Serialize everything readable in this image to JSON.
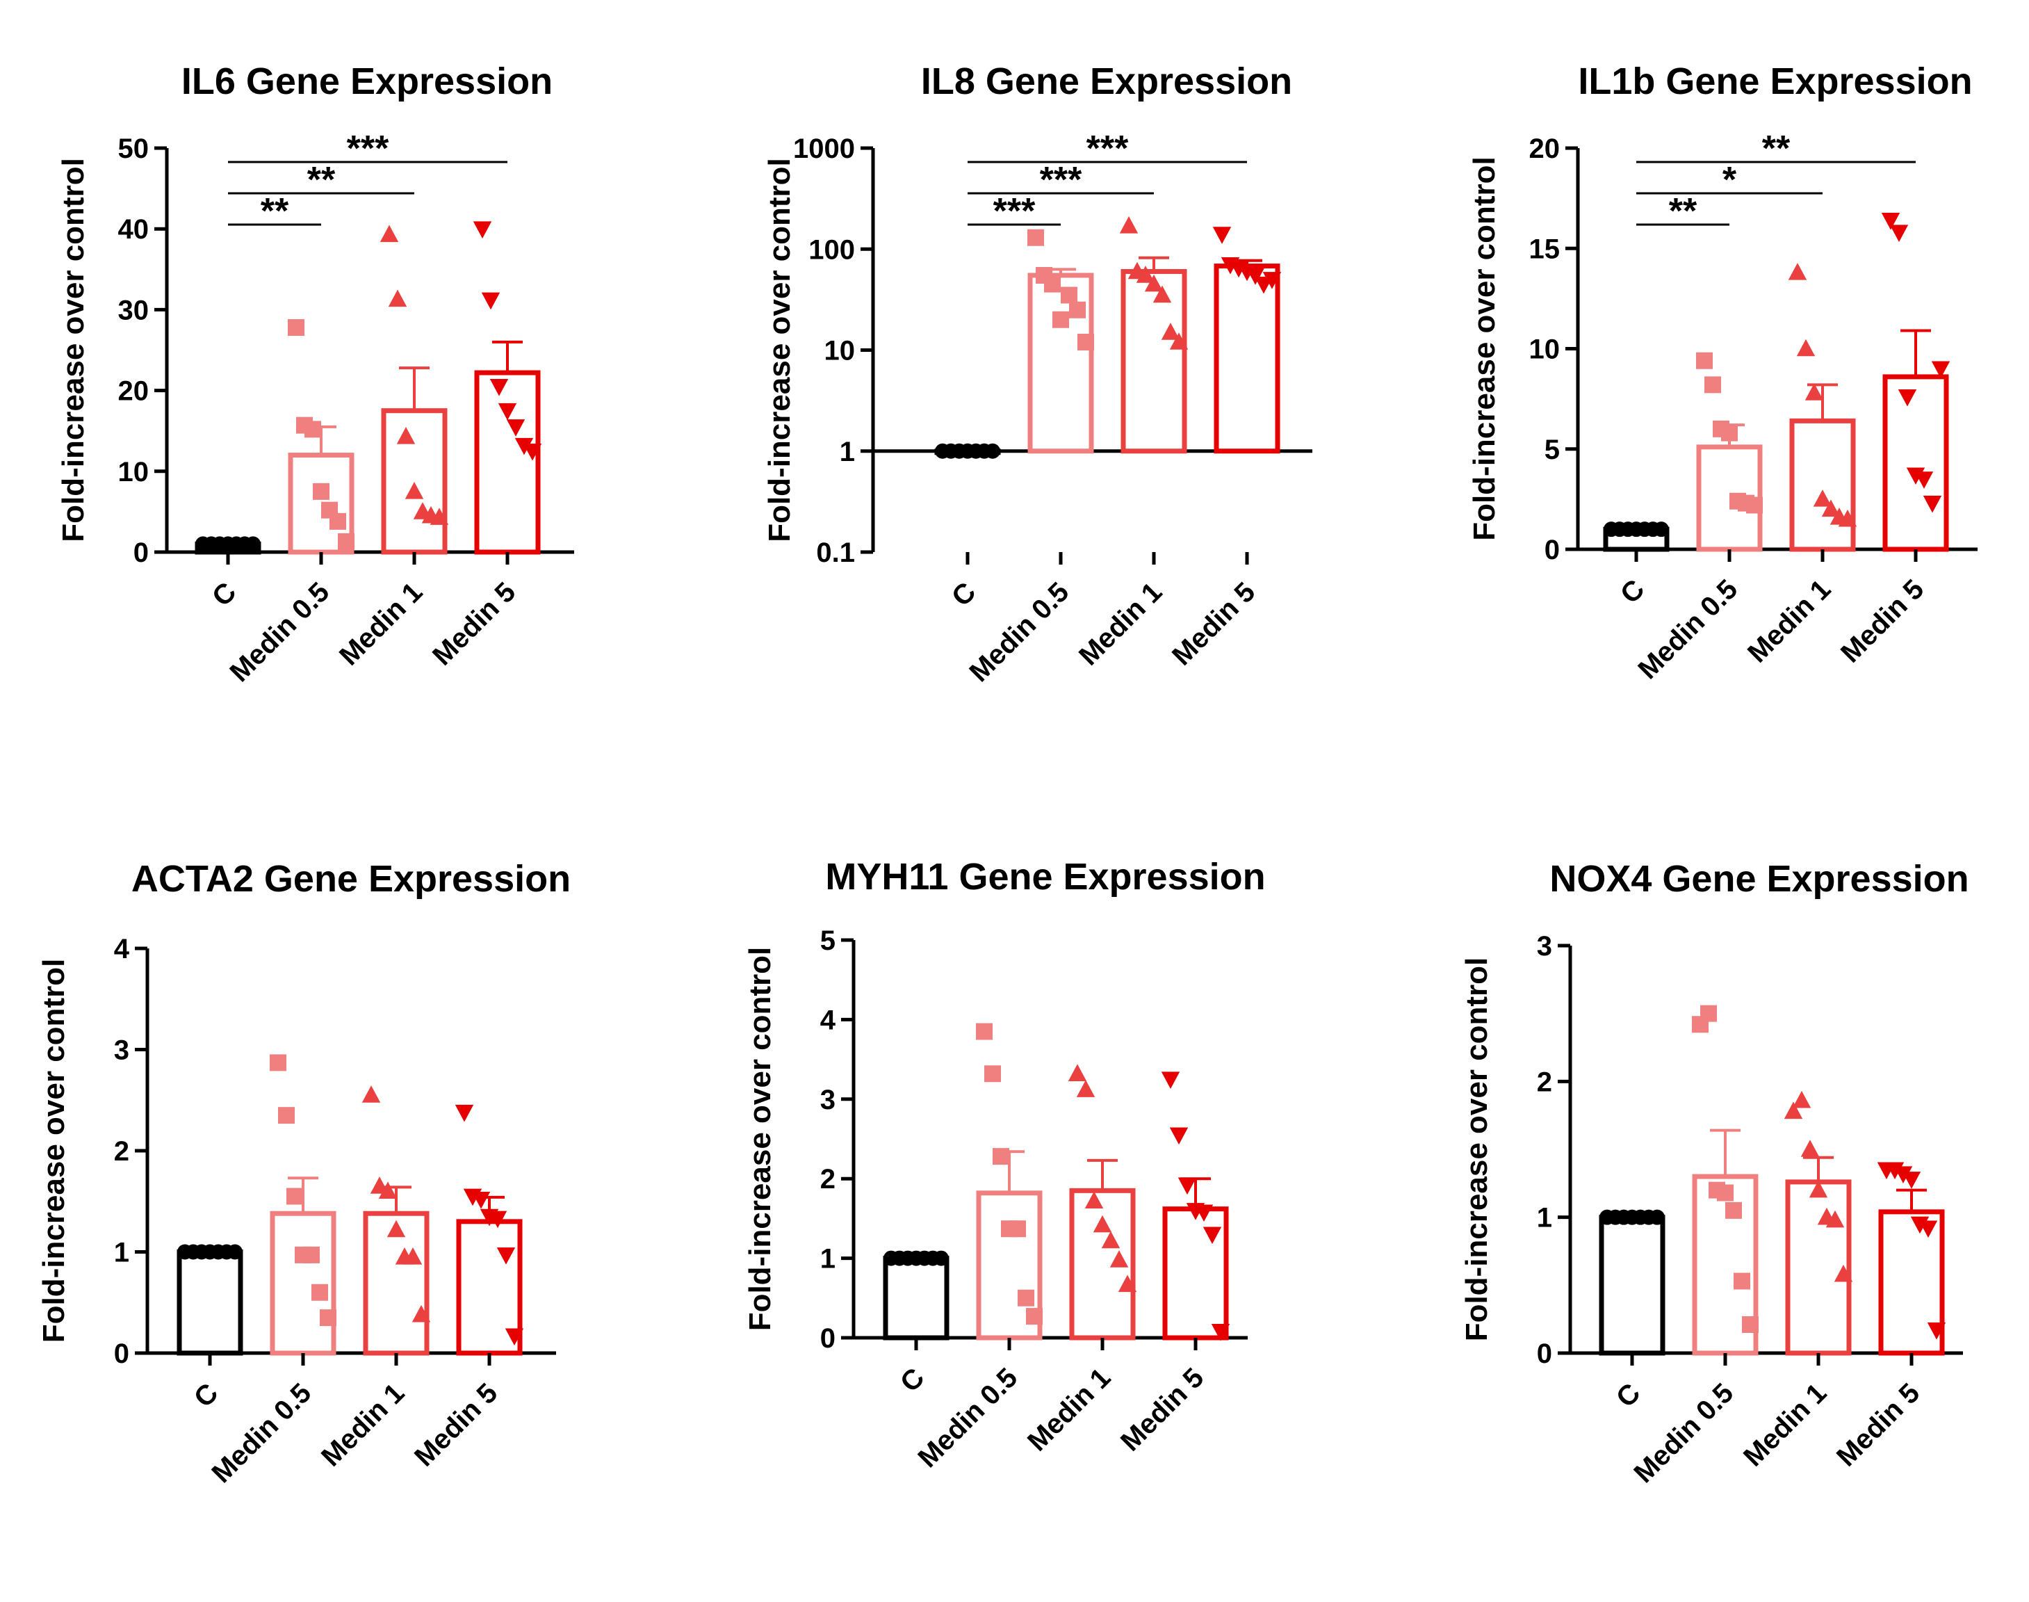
{
  "colors": {
    "C": "#000000",
    "Medin 0.5": "#f08080",
    "Medin 1": "#eb4040",
    "Medin 5": "#e60000"
  },
  "chart_data": [
    {
      "type": "bar",
      "title": "IL6 Gene Expression",
      "ylabel": "Fold-increase over control",
      "yscale": "linear",
      "ylim": [
        0,
        50
      ],
      "yticks": [
        "0",
        "10",
        "20",
        "30",
        "40",
        "50"
      ],
      "categories": [
        "C",
        "Medin 0.5",
        "Medin 1",
        "Medin 5"
      ],
      "values": [
        1,
        12,
        17.5,
        22.2
      ],
      "sem": [
        0,
        3.5,
        5.3,
        3.8
      ],
      "points": [
        [
          1,
          1,
          1,
          1,
          1,
          1,
          1
        ],
        [
          27.8,
          15.7,
          15.2,
          7.5,
          5.2,
          3.8,
          1.3
        ],
        [
          39.3,
          31.3,
          14.3,
          7.5,
          5.0,
          4.5,
          4.3
        ],
        [
          40,
          31.2,
          20.5,
          17.5,
          15.5,
          13.2,
          12.5
        ]
      ],
      "markers": [
        "circle",
        "square",
        "triangle-up",
        "triangle-down"
      ],
      "significance": [
        {
          "from": 0,
          "to": 1,
          "label": "**"
        },
        {
          "from": 0,
          "to": 2,
          "label": "**"
        },
        {
          "from": 0,
          "to": 3,
          "label": "***"
        }
      ]
    },
    {
      "type": "bar",
      "title": "IL8 Gene Expression",
      "ylabel": "Fold-increase over control",
      "yscale": "log",
      "ylim": [
        0.1,
        1000
      ],
      "yticks": [
        "0.1",
        "1",
        "10",
        "100",
        "1000"
      ],
      "categories": [
        "C",
        "Medin 0.5",
        "Medin 1",
        "Medin 5"
      ],
      "values": [
        1,
        55,
        60,
        68
      ],
      "sem": [
        0,
        8,
        22,
        9
      ],
      "points": [
        [
          1,
          1,
          1,
          1,
          1,
          1,
          1
        ],
        [
          130,
          55,
          45,
          20,
          35,
          25,
          12
        ],
        [
          170,
          60,
          55,
          45,
          35,
          15,
          12
        ],
        [
          140,
          70,
          65,
          60,
          55,
          45,
          50
        ]
      ],
      "markers": [
        "circle",
        "square",
        "triangle-up",
        "triangle-down"
      ],
      "significance": [
        {
          "from": 0,
          "to": 1,
          "label": "***"
        },
        {
          "from": 0,
          "to": 2,
          "label": "***"
        },
        {
          "from": 0,
          "to": 3,
          "label": "***"
        }
      ]
    },
    {
      "type": "bar",
      "title": "IL1b Gene Expression",
      "ylabel": "Fold-increase over control",
      "yscale": "linear",
      "ylim": [
        0,
        20
      ],
      "yticks": [
        "0",
        "5",
        "10",
        "15",
        "20"
      ],
      "categories": [
        "C",
        "Medin 0.5",
        "Medin 1",
        "Medin 5"
      ],
      "values": [
        1,
        5.1,
        6.4,
        8.6
      ],
      "sem": [
        0,
        1.1,
        1.8,
        2.3
      ],
      "points": [
        [
          1,
          1,
          1,
          1,
          1,
          1,
          1
        ],
        [
          9.4,
          8.2,
          6.0,
          5.8,
          2.4,
          2.3,
          2.2
        ],
        [
          13.8,
          10.0,
          7.8,
          2.5,
          2.0,
          1.6,
          1.5
        ],
        [
          16.4,
          15.8,
          7.6,
          3.7,
          3.5,
          2.3,
          9.0
        ]
      ],
      "markers": [
        "circle",
        "square",
        "triangle-up",
        "triangle-down"
      ],
      "significance": [
        {
          "from": 0,
          "to": 1,
          "label": "**"
        },
        {
          "from": 0,
          "to": 2,
          "label": "*"
        },
        {
          "from": 0,
          "to": 3,
          "label": "**"
        }
      ]
    },
    {
      "type": "bar",
      "title": "ACTA2 Gene Expression",
      "ylabel": "Fold-increase over control",
      "yscale": "linear",
      "ylim": [
        0,
        4
      ],
      "yticks": [
        "0",
        "1",
        "2",
        "3",
        "4"
      ],
      "categories": [
        "C",
        "Medin 0.5",
        "Medin 1",
        "Medin 5"
      ],
      "values": [
        1,
        1.38,
        1.38,
        1.3
      ],
      "sem": [
        0,
        0.35,
        0.26,
        0.24
      ],
      "points": [
        [
          1,
          1,
          1,
          1,
          1,
          1,
          1
        ],
        [
          2.87,
          2.35,
          1.55,
          0.97,
          0.97,
          0.6,
          0.35
        ],
        [
          2.55,
          1.65,
          1.6,
          1.22,
          0.95,
          0.95,
          0.38
        ],
        [
          2.38,
          1.55,
          1.52,
          1.35,
          1.33,
          0.97,
          0.17
        ]
      ],
      "markers": [
        "circle",
        "square",
        "triangle-up",
        "triangle-down"
      ],
      "significance": []
    },
    {
      "type": "bar",
      "title": "MYH11 Gene Expression",
      "ylabel": "Fold-increase over control",
      "yscale": "linear",
      "ylim": [
        0,
        5
      ],
      "yticks": [
        "0",
        "1",
        "2",
        "3",
        "4",
        "5"
      ],
      "categories": [
        "C",
        "Medin 0.5",
        "Medin 1",
        "Medin 5"
      ],
      "values": [
        1,
        1.82,
        1.85,
        1.62
      ],
      "sem": [
        0,
        0.52,
        0.38,
        0.38
      ],
      "points": [
        [
          1,
          1,
          1,
          1,
          1,
          1,
          1
        ],
        [
          3.85,
          3.32,
          2.28,
          1.37,
          1.37,
          0.5,
          0.27
        ],
        [
          3.32,
          3.12,
          1.72,
          1.42,
          1.22,
          0.98,
          0.67
        ],
        [
          3.25,
          2.55,
          1.92,
          1.6,
          1.58,
          1.3,
          0.08
        ]
      ],
      "markers": [
        "circle",
        "square",
        "triangle-up",
        "triangle-down"
      ],
      "significance": []
    },
    {
      "type": "bar",
      "title": "NOX4 Gene Expression",
      "ylabel": "Fold-increase over control",
      "yscale": "linear",
      "ylim": [
        0,
        3
      ],
      "yticks": [
        "0",
        "1",
        "2",
        "3"
      ],
      "categories": [
        "C",
        "Medin 0.5",
        "Medin 1",
        "Medin 5"
      ],
      "values": [
        1,
        1.3,
        1.26,
        1.04
      ],
      "sem": [
        0,
        0.34,
        0.18,
        0.16
      ],
      "points": [
        [
          1,
          1,
          1,
          1,
          1,
          1,
          1
        ],
        [
          2.42,
          2.5,
          1.2,
          1.18,
          1.05,
          0.53,
          0.21
        ],
        [
          1.78,
          1.86,
          1.5,
          1.2,
          1.0,
          0.98,
          0.58
        ],
        [
          1.35,
          1.35,
          1.32,
          1.28,
          0.95,
          0.92,
          0.17
        ]
      ],
      "markers": [
        "circle",
        "square",
        "triangle-up",
        "triangle-down"
      ],
      "significance": []
    }
  ]
}
